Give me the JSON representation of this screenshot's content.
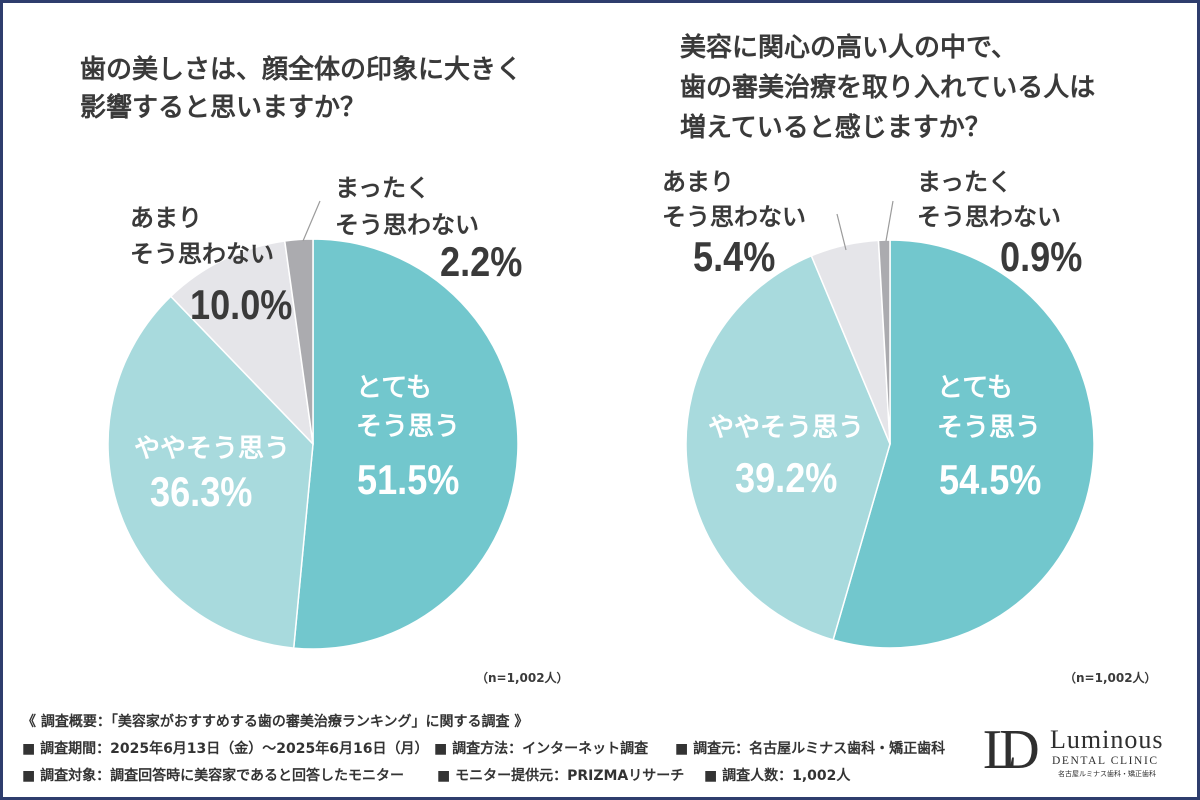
{
  "chart_data": [
    {
      "type": "pie",
      "title": "歯の美しさは、顔全体の印象に大きく\n影響すると思いますか？",
      "categories": [
        "とても\nそう思う",
        "ややそう思う",
        "あまり\nそう思わない",
        "まったく\nそう思わない"
      ],
      "values": [
        51.5,
        36.3,
        10.0,
        2.2
      ],
      "value_labels": [
        "51.5%",
        "36.3%",
        "10.0%",
        "2.2%"
      ],
      "colors": [
        "#72C7CD",
        "#A8DADD",
        "#E5E5E9",
        "#ABABAF"
      ],
      "note": "（n=1,002人）"
    },
    {
      "type": "pie",
      "title": "美容に関心の高い人の中で、\n歯の審美治療を取り入れている人は\n増えていると感じますか？",
      "categories": [
        "とても\nそう思う",
        "ややそう思う",
        "あまり\nそう思わない",
        "まったく\nそう思わない"
      ],
      "values": [
        54.5,
        39.2,
        5.4,
        0.9
      ],
      "value_labels": [
        "54.5%",
        "39.2%",
        "5.4%",
        "0.9%"
      ],
      "colors": [
        "#72C7CD",
        "#A8DADD",
        "#E5E5E9",
        "#ABABAF"
      ],
      "note": "（n=1,002人）"
    }
  ],
  "footer": {
    "heading": "《 調査概要：「美容家がおすすめする歯の審美治療ランキング」に関する調査 》",
    "rows": [
      [
        "■ 調査期間：2025年6月13日（金）～2025年6月16日（月）",
        "■ 調査方法：インターネット調査",
        "■ 調査元：名古屋ルミナス歯科・矯正歯科"
      ],
      [
        "■ 調査対象：調査回答時に美容家であると回答したモニター",
        "■ モニター提供元：PRIZMAリサーチ",
        "■ 調査人数：1,002人"
      ]
    ]
  },
  "logo": {
    "mark": "LD",
    "name": "Luminous",
    "subtitle": "DENTAL CLINIC",
    "japanese_name": "名古屋ルミナス歯科・矯正歯科"
  }
}
